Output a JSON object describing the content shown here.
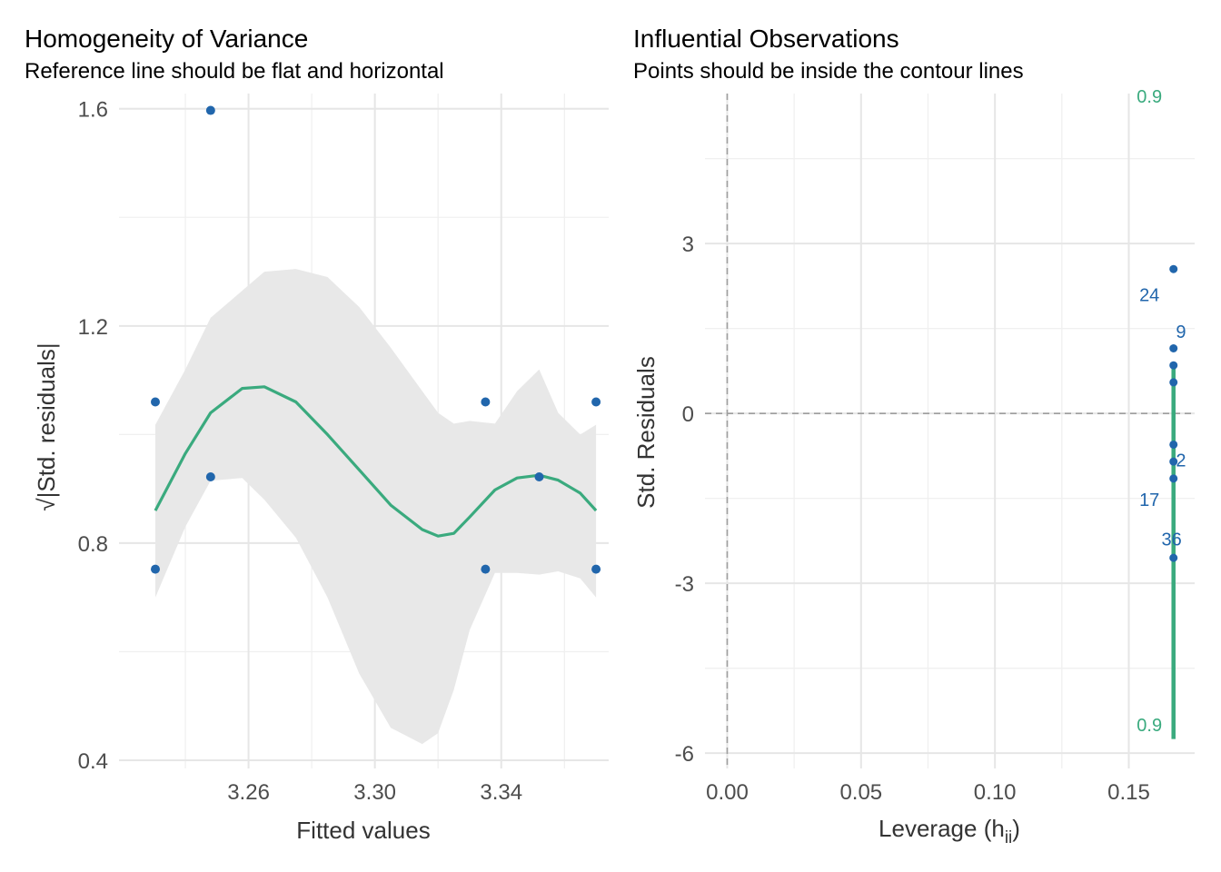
{
  "colors": {
    "point": "#2166ac",
    "line": "#3aaa7e",
    "band": "#e8e8e8",
    "refline": "#9e9e9e",
    "contour": "#3aaa7e"
  },
  "chart_data": [
    {
      "type": "scatter",
      "title": "Homogeneity of Variance",
      "subtitle": "Reference line should be flat and horizontal",
      "xlabel": "Fitted values",
      "ylabel": "√|Std. residuals|",
      "xlim": [
        3.219,
        3.374
      ],
      "ylim": [
        0.385,
        1.628
      ],
      "xticks": [
        3.26,
        3.3,
        3.34
      ],
      "xtick_labels": [
        "3.26",
        "3.30",
        "3.34"
      ],
      "yticks": [
        0.4,
        0.8,
        1.2,
        1.6
      ],
      "ytick_labels": [
        "0.4",
        "0.8",
        "1.2",
        "1.6"
      ],
      "grid": true,
      "points": [
        {
          "x": 3.2305,
          "y": 1.06
        },
        {
          "x": 3.2305,
          "y": 0.752
        },
        {
          "x": 3.248,
          "y": 1.597
        },
        {
          "x": 3.248,
          "y": 0.922
        },
        {
          "x": 3.335,
          "y": 1.06
        },
        {
          "x": 3.335,
          "y": 0.752
        },
        {
          "x": 3.352,
          "y": 0.922
        },
        {
          "x": 3.37,
          "y": 1.06
        },
        {
          "x": 3.37,
          "y": 0.752
        }
      ],
      "smooth": {
        "x": [
          3.2305,
          3.24,
          3.248,
          3.258,
          3.265,
          3.275,
          3.285,
          3.295,
          3.305,
          3.315,
          3.32,
          3.325,
          3.33,
          3.338,
          3.345,
          3.352,
          3.358,
          3.365,
          3.37
        ],
        "y": [
          0.86,
          0.965,
          1.04,
          1.085,
          1.088,
          1.06,
          1.0,
          0.935,
          0.87,
          0.825,
          0.813,
          0.818,
          0.848,
          0.898,
          0.92,
          0.925,
          0.916,
          0.892,
          0.86
        ],
        "upper": [
          1.018,
          1.12,
          1.215,
          1.265,
          1.3,
          1.305,
          1.29,
          1.235,
          1.16,
          1.08,
          1.04,
          1.02,
          1.025,
          1.02,
          1.08,
          1.12,
          1.04,
          1.0,
          1.018
        ],
        "lower": [
          0.7,
          0.83,
          0.915,
          0.92,
          0.88,
          0.81,
          0.7,
          0.56,
          0.46,
          0.43,
          0.45,
          0.53,
          0.64,
          0.745,
          0.745,
          0.742,
          0.748,
          0.735,
          0.7
        ]
      }
    },
    {
      "type": "scatter",
      "title": "Influential Observations",
      "subtitle": "Points should be inside the contour lines",
      "xlabel": "Leverage (hii)",
      "xlabel_main": "Leverage (h",
      "xlabel_sub": "ii",
      "xlabel_close": ")",
      "ylabel": "Std. Residuals",
      "xlim": [
        -0.0083,
        0.1746
      ],
      "ylim": [
        -6.27,
        5.65
      ],
      "xticks": [
        0.0,
        0.05,
        0.1,
        0.15
      ],
      "xtick_labels": [
        "0.00",
        "0.05",
        "0.10",
        "0.15"
      ],
      "yticks": [
        -6,
        -3,
        0,
        3
      ],
      "ytick_labels": [
        "-6",
        "-3",
        "0",
        "3"
      ],
      "grid": true,
      "reference_lines": {
        "x": 0,
        "y": 0
      },
      "points": [
        {
          "x": 0.1667,
          "y": 2.55
        },
        {
          "x": 0.1667,
          "y": 1.15
        },
        {
          "x": 0.1667,
          "y": 0.85
        },
        {
          "x": 0.1667,
          "y": 0.55
        },
        {
          "x": 0.1667,
          "y": -0.55
        },
        {
          "x": 0.1667,
          "y": -0.85
        },
        {
          "x": 0.1667,
          "y": -1.15
        },
        {
          "x": 0.1667,
          "y": -2.55
        }
      ],
      "point_labels": [
        {
          "text": "24",
          "x": 0.1577,
          "y": 2.1
        },
        {
          "text": "9",
          "x": 0.1695,
          "y": 1.45
        },
        {
          "text": "2",
          "x": 0.1695,
          "y": -0.82
        },
        {
          "text": "17",
          "x": 0.1577,
          "y": -1.52
        },
        {
          "text": "36",
          "x": 0.166,
          "y": -2.22
        }
      ],
      "contour": {
        "x": 0.1667,
        "y_top": 0.85,
        "y_bottom": -5.75
      },
      "contour_labels": [
        {
          "text": "0.9",
          "x": 0.1577,
          "y": 5.6
        },
        {
          "text": "0.9",
          "x": 0.1577,
          "y": -5.5
        }
      ]
    }
  ]
}
